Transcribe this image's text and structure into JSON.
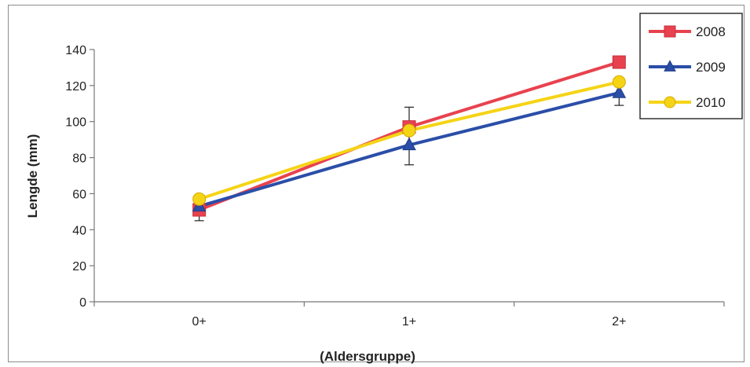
{
  "chart_data": {
    "type": "line",
    "categories": [
      "0+",
      "1+",
      "2+"
    ],
    "series": [
      {
        "name": "2008",
        "color": "#e8424f",
        "marker": "square",
        "values": [
          51,
          97,
          133
        ],
        "error": [
          6,
          11,
          null
        ]
      },
      {
        "name": "2009",
        "color": "#2a4ea8",
        "marker": "triangle",
        "values": [
          53,
          87,
          116
        ],
        "error": [
          null,
          11,
          7
        ]
      },
      {
        "name": "2010",
        "color": "#f5d416",
        "marker": "circle",
        "values": [
          57,
          95,
          122
        ],
        "error": [
          null,
          null,
          null
        ]
      }
    ],
    "ylabel": "Lengde (mm)",
    "xlabel": "(Aldersgruppe)",
    "ylim": [
      0,
      140
    ],
    "yticks": [
      0,
      20,
      40,
      60,
      80,
      100,
      120,
      140
    ],
    "grid": false,
    "legend": "top-right"
  }
}
